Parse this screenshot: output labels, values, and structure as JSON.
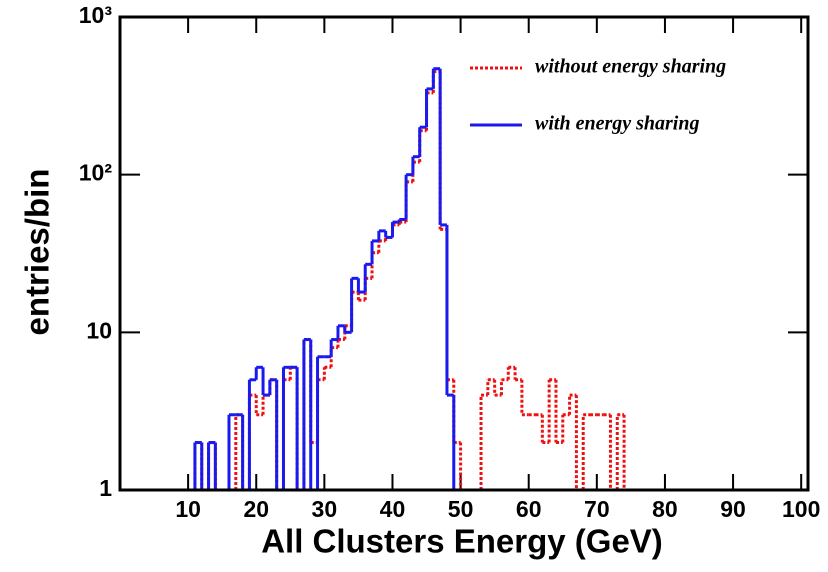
{
  "chart_data": {
    "type": "histogram",
    "xlabel": "All Clusters Energy (GeV)",
    "ylabel": "entries/bin",
    "bins": [
      0,
      1,
      2,
      3,
      4,
      5,
      6,
      7,
      8,
      9,
      10,
      11,
      12,
      13,
      14,
      15,
      16,
      17,
      18,
      19,
      20,
      21,
      22,
      23,
      24,
      25,
      26,
      27,
      28,
      29,
      30,
      31,
      32,
      33,
      34,
      35,
      36,
      37,
      38,
      39,
      40,
      41,
      42,
      43,
      44,
      45,
      46,
      47,
      48,
      49,
      50,
      51,
      52,
      53,
      54,
      55,
      56,
      57,
      58,
      59,
      60,
      61,
      62,
      63,
      64,
      65,
      66,
      67,
      68,
      69,
      70,
      71,
      72,
      73,
      74,
      75,
      76,
      77,
      78,
      79,
      80,
      81,
      82,
      83,
      84,
      85,
      86,
      87,
      88,
      89,
      90,
      91,
      92,
      93,
      94,
      95,
      96,
      97,
      98,
      99,
      100,
      101
    ],
    "series": [
      {
        "name": "without energy sharing",
        "color": "#ee1111",
        "dash": true,
        "values": [
          0,
          0,
          0,
          0,
          0,
          0,
          0,
          0,
          0,
          0,
          0,
          2,
          0,
          2,
          0,
          0,
          0,
          3,
          0,
          4,
          3,
          4,
          5,
          0,
          5,
          6,
          0,
          9,
          2,
          5,
          6,
          8,
          9,
          11,
          18,
          16,
          22,
          32,
          38,
          40,
          48,
          50,
          90,
          120,
          190,
          330,
          450,
          45,
          5,
          2,
          1,
          1,
          1,
          4,
          5,
          4,
          5,
          6,
          5,
          3,
          3,
          3,
          2,
          5,
          2,
          3,
          4,
          1,
          3,
          3,
          3,
          3,
          1,
          3,
          0,
          0,
          0,
          0,
          0,
          0,
          0,
          0,
          0,
          0,
          0,
          0,
          0,
          0,
          0,
          0,
          0,
          0,
          0,
          0,
          0,
          0,
          0,
          0,
          0,
          0,
          0
        ]
      },
      {
        "name": "with energy sharing",
        "color": "#1a1aee",
        "dash": false,
        "values": [
          0,
          0,
          0,
          0,
          0,
          0,
          0,
          0,
          0,
          0,
          0,
          2,
          0,
          2,
          0,
          0,
          3,
          3,
          0,
          5,
          6,
          4,
          5,
          0,
          6,
          6,
          0,
          9,
          1,
          7,
          7,
          9,
          11,
          10,
          22,
          18,
          27,
          38,
          44,
          40,
          50,
          52,
          100,
          130,
          200,
          350,
          470,
          48,
          4,
          1,
          0,
          0,
          0,
          0,
          0,
          0,
          0,
          0,
          0,
          0,
          0,
          0,
          0,
          0,
          0,
          0,
          0,
          0,
          0,
          0,
          0,
          0,
          0,
          0,
          0,
          0,
          0,
          0,
          0,
          0,
          0,
          0,
          0,
          0,
          0,
          0,
          0,
          0,
          0,
          0,
          0,
          0,
          0,
          0,
          0,
          0,
          0,
          0,
          0,
          0,
          0
        ]
      }
    ],
    "xlim": [
      0,
      101
    ],
    "ylim": [
      1,
      1000
    ],
    "log_y": true,
    "xticks": [
      10,
      20,
      30,
      40,
      50,
      60,
      70,
      80,
      90,
      100
    ],
    "yticks": [
      1,
      10,
      {
        "value": 100,
        "label": "10²"
      },
      {
        "value": 1000,
        "label": "10³"
      }
    ],
    "legend": "top-right"
  }
}
